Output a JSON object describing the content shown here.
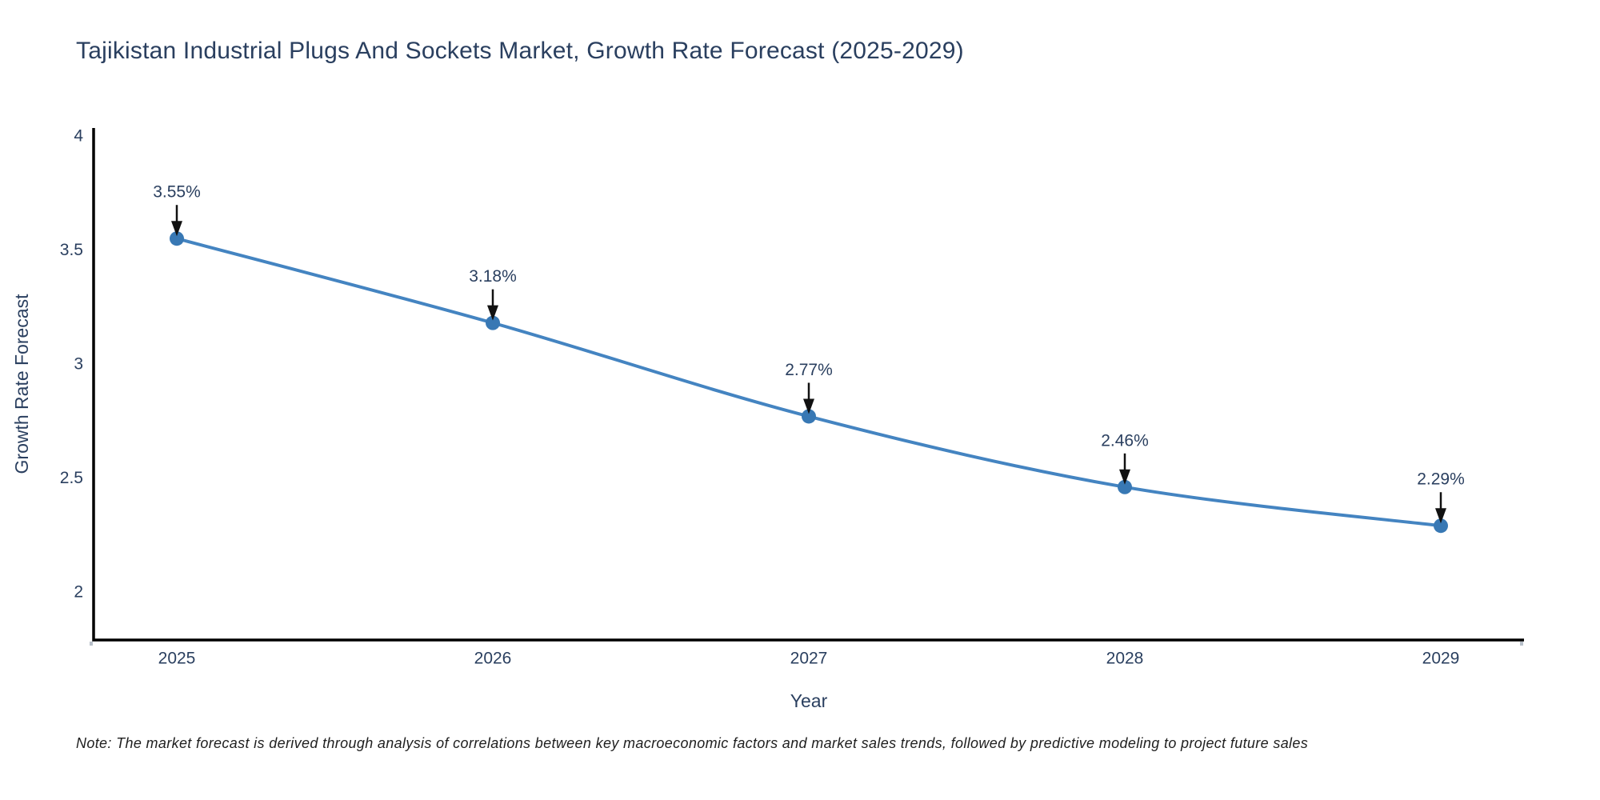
{
  "chart_data": {
    "type": "line",
    "title": "Tajikistan Industrial Plugs And Sockets Market, Growth Rate Forecast (2025-2029)",
    "xlabel": "Year",
    "ylabel": "Growth Rate Forecast",
    "categories": [
      "2025",
      "2026",
      "2027",
      "2028",
      "2029"
    ],
    "values": [
      3.55,
      3.18,
      2.77,
      2.46,
      2.29
    ],
    "point_labels": [
      "3.55%",
      "3.18%",
      "2.77%",
      "2.46%",
      "2.29%"
    ],
    "ytick_values": [
      4,
      3.5,
      3,
      2.5,
      2
    ],
    "ytick_labels": [
      "4",
      "3.5",
      "3",
      "2.5",
      "2"
    ],
    "ylim": [
      1.789,
      4.035
    ],
    "line_shape": "spline",
    "grid": false,
    "legend": "none",
    "colors": {
      "line": "#4484c1",
      "marker": "#3878b4",
      "axis": "#000000",
      "end_tick": "#b7bfc9",
      "text": "#2a3f5f",
      "arrow": "#111111"
    }
  },
  "note": {
    "text": "Note: The market forecast is derived through analysis of correlations between key macroeconomic factors and market sales trends, followed by predictive modeling to project future sales"
  }
}
